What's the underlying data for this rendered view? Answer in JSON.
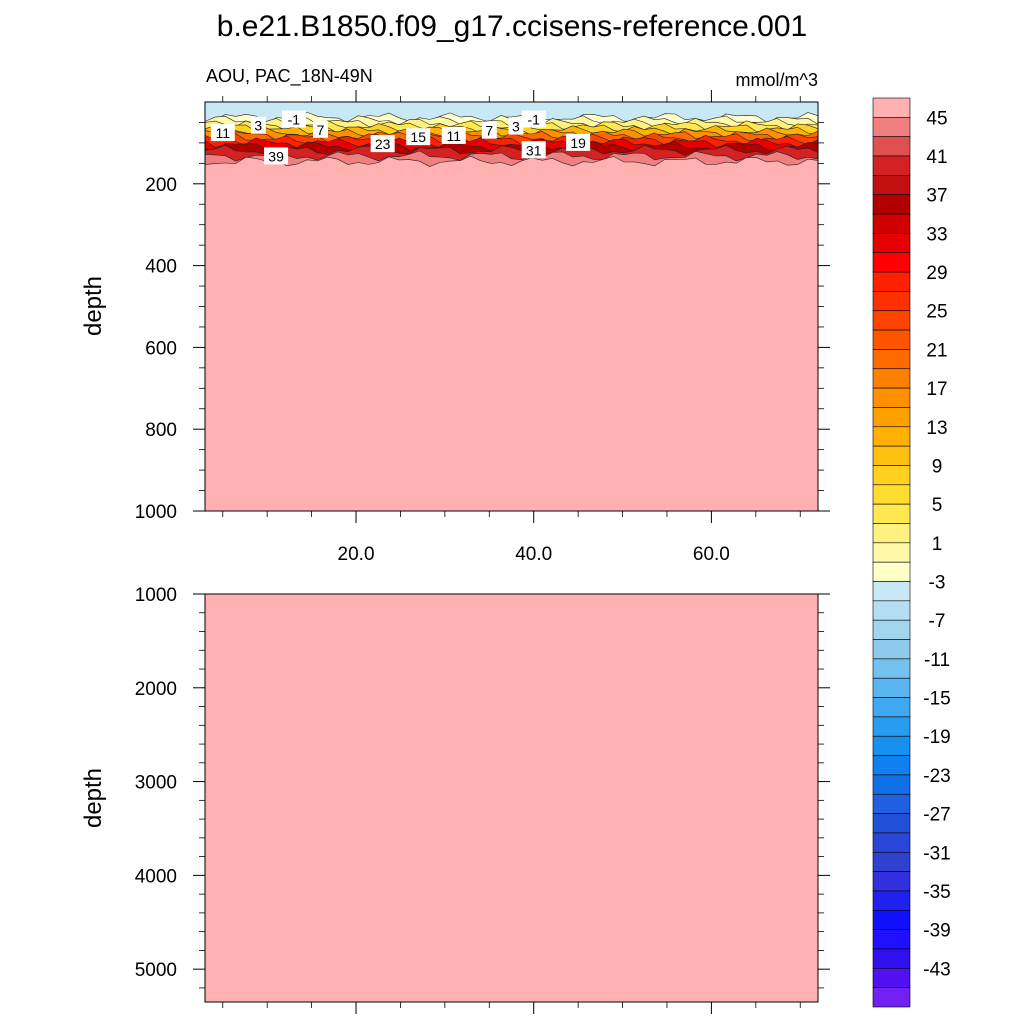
{
  "chart_data": {
    "type": "heatmap",
    "title": "b.e21.B1850.f09_g17.ccisens-reference.001",
    "variable_label": "AOU, PAC_18N-49N",
    "units": "mmol/m^3",
    "x_ticks": [
      "20.0",
      "40.0",
      "60.0"
    ],
    "x_tick_values": [
      20,
      40,
      60
    ],
    "xlim": [
      3,
      72
    ],
    "upper_panel": {
      "ylabel": "depth",
      "ylim": [
        0,
        1000
      ],
      "y_ticks": [
        "200",
        "400",
        "600",
        "800",
        "1000"
      ],
      "y_tick_values": [
        200,
        400,
        600,
        800,
        1000
      ],
      "layers": [
        {
          "depth": 0,
          "value": -4
        },
        {
          "depth": 38,
          "value": -2
        },
        {
          "depth": 45,
          "value": 0
        },
        {
          "depth": 52,
          "value": 2
        },
        {
          "depth": 58,
          "value": 5
        },
        {
          "depth": 64,
          "value": 9
        },
        {
          "depth": 70,
          "value": 13
        },
        {
          "depth": 76,
          "value": 17
        },
        {
          "depth": 82,
          "value": 21
        },
        {
          "depth": 88,
          "value": 25
        },
        {
          "depth": 94,
          "value": 29
        },
        {
          "depth": 100,
          "value": 33
        },
        {
          "depth": 108,
          "value": 37
        },
        {
          "depth": 118,
          "value": 41
        },
        {
          "depth": 132,
          "value": 44
        },
        {
          "depth": 145,
          "value": 47
        }
      ],
      "contour_labels": [
        {
          "text": "11",
          "x": 5,
          "depth": 76
        },
        {
          "text": "3",
          "x": 9,
          "depth": 58
        },
        {
          "text": "-1",
          "x": 13,
          "depth": 43
        },
        {
          "text": "7",
          "x": 16,
          "depth": 68
        },
        {
          "text": "39",
          "x": 11,
          "depth": 133
        },
        {
          "text": "23",
          "x": 23,
          "depth": 103
        },
        {
          "text": "15",
          "x": 27,
          "depth": 86
        },
        {
          "text": "11",
          "x": 31,
          "depth": 83
        },
        {
          "text": "7",
          "x": 35,
          "depth": 70
        },
        {
          "text": "3",
          "x": 38,
          "depth": 60
        },
        {
          "text": "-1",
          "x": 40,
          "depth": 43
        },
        {
          "text": "31",
          "x": 40,
          "depth": 118
        },
        {
          "text": "19",
          "x": 45,
          "depth": 100
        }
      ]
    },
    "lower_panel": {
      "ylabel": "depth",
      "ylim": [
        1000,
        5350
      ],
      "y_ticks": [
        "1000",
        "2000",
        "3000",
        "4000",
        "5000"
      ],
      "y_tick_values": [
        1000,
        2000,
        3000,
        4000,
        5000
      ],
      "fill_value": 47
    },
    "colorbar": {
      "labels": [
        "45",
        "41",
        "37",
        "33",
        "29",
        "25",
        "21",
        "17",
        "13",
        "9",
        "5",
        "1",
        "-3",
        "-7",
        "-11",
        "-15",
        "-19",
        "-23",
        "-27",
        "-31",
        "-35",
        "-39",
        "-43"
      ],
      "levels_top_to_bottom": [
        47,
        45,
        43,
        41,
        39,
        37,
        35,
        33,
        31,
        29,
        27,
        25,
        23,
        21,
        19,
        17,
        15,
        13,
        11,
        9,
        7,
        5,
        3,
        1,
        -1,
        -3,
        -5,
        -7,
        -9,
        -11,
        -13,
        -15,
        -17,
        -19,
        -21,
        -23,
        -25,
        -27,
        -29,
        -31,
        -33,
        -35,
        -37,
        -39,
        -41,
        -43,
        -45
      ],
      "colors_top_to_bottom": [
        "#ffb0b0",
        "#f07f7f",
        "#e15050",
        "#d42222",
        "#c21010",
        "#b00000",
        "#d00000",
        "#e80000",
        "#ff0000",
        "#ff2000",
        "#ff3000",
        "#ff4400",
        "#ff5500",
        "#ff6a00",
        "#ff7f00",
        "#ff9000",
        "#ffa000",
        "#ffb000",
        "#ffc010",
        "#ffd020",
        "#ffdd30",
        "#ffe850",
        "#fff080",
        "#fff8a8",
        "#ffffc8",
        "#c8e8f6",
        "#b6def2",
        "#a2d4ee",
        "#8ecaec",
        "#74c0ee",
        "#5ab4f0",
        "#40a8f0",
        "#289cf0",
        "#1890f0",
        "#1080f0",
        "#1070e8",
        "#2060e0",
        "#2050d8",
        "#2a46d6",
        "#3040d0",
        "#3030e0",
        "#2020f0",
        "#1010ff",
        "#2010ff",
        "#3010f0",
        "#5010f0",
        "#7020f0"
      ]
    }
  }
}
